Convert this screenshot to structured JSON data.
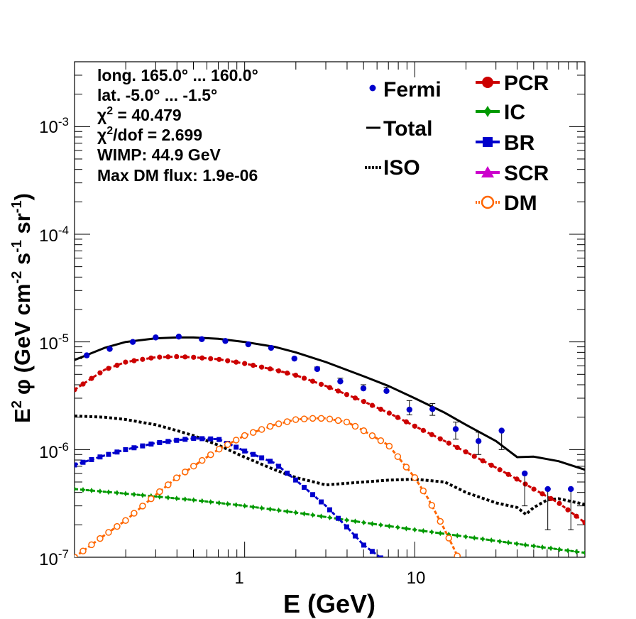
{
  "chart_data": {
    "type": "line",
    "title": "",
    "xlabel": "E (GeV)",
    "ylabel_parts": {
      "base": "E",
      "sq": "2",
      "phi": "φ (GeV cm",
      "cm_exp": "-2",
      "s": " s",
      "s_exp": "-1",
      "sr": " sr",
      "sr_exp": "-1",
      "close": ")"
    },
    "xscale": "log",
    "yscale": "log",
    "xlim": [
      0.1,
      100
    ],
    "ylim": [
      1e-07,
      0.004
    ],
    "x_ticks": [
      {
        "value": 1,
        "label": "1"
      },
      {
        "value": 10,
        "label": "10"
      }
    ],
    "y_ticks": [
      {
        "value": 1e-07,
        "base": "10",
        "exp": "-7"
      },
      {
        "value": 1e-06,
        "base": "10",
        "exp": "-6"
      },
      {
        "value": 1e-05,
        "base": "10",
        "exp": "-5"
      },
      {
        "value": 0.0001,
        "base": "10",
        "exp": "-4"
      },
      {
        "value": 0.001,
        "base": "10",
        "exp": "-3"
      }
    ],
    "info": {
      "longitude": "long. 165.0° ... 160.0°",
      "latitude": "lat. -5.0° ... -1.5°",
      "chi2_sym": "χ",
      "chi2_exp": "2",
      "chi2_value": " = 40.479",
      "chi2dof_value": "/dof = 2.699",
      "wimp": "WIMP: 44.9 GeV",
      "max_dm_flux": "Max DM flux: 1.9e-06"
    },
    "legend": [
      {
        "key": "fermi",
        "label": "Fermi",
        "color": "#0000cc"
      },
      {
        "key": "total",
        "label": "Total",
        "color": "#000000"
      },
      {
        "key": "iso",
        "label": "ISO",
        "color": "#000000"
      },
      {
        "key": "pcr",
        "label": "PCR",
        "color": "#cc0000"
      },
      {
        "key": "ic",
        "label": "IC",
        "color": "#009900"
      },
      {
        "key": "br",
        "label": "BR",
        "color": "#0000cc"
      },
      {
        "key": "scr",
        "label": "SCR",
        "color": "#cc00cc"
      },
      {
        "key": "dm",
        "label": "DM",
        "color": "#ff6600"
      }
    ],
    "fermi": {
      "x": [
        0.118,
        0.161,
        0.22,
        0.3,
        0.41,
        0.56,
        0.77,
        1.05,
        1.43,
        1.96,
        2.67,
        3.65,
        4.99,
        6.82,
        9.3,
        12.7,
        17.4,
        23.7,
        32.4,
        44.3,
        60.5,
        82.7
      ],
      "y": [
        7.5e-06,
        8.6e-06,
        1e-05,
        1.1e-05,
        1.12e-05,
        1.06e-05,
        1.02e-05,
        9.5e-06,
        8.8e-06,
        7e-06,
        5.6e-06,
        4.3e-06,
        3.7e-06,
        3.5e-06,
        2.35e-06,
        2.38e-06,
        1.55e-06,
        1.2e-06,
        1.5e-06,
        6e-07,
        4.3e-07,
        4.3e-07
      ],
      "err_lo": [
        0,
        0,
        0,
        0,
        0,
        0,
        0,
        0,
        0,
        0,
        0,
        0,
        0,
        0,
        2.5e-07,
        3e-07,
        3e-07,
        3e-07,
        5e-07,
        3e-07,
        2.5e-07,
        2.5e-07
      ],
      "err_hi": [
        0,
        0,
        0,
        0,
        0,
        0,
        0,
        0,
        0,
        0,
        2.5e-07,
        3e-07,
        3e-07,
        3e-07,
        5e-07,
        3e-07,
        2.5e-07,
        2.5e-07
      ]
    },
    "series": [
      {
        "name": "Total",
        "key": "total",
        "color": "#000000",
        "style": "solid",
        "x": [
          0.1,
          0.15,
          0.2,
          0.3,
          0.4,
          0.5,
          0.7,
          1.0,
          1.5,
          2.0,
          3.0,
          5.0,
          7.0,
          10,
          15,
          20,
          30,
          40,
          50,
          70,
          100
        ],
        "y": [
          6.8e-06,
          8.8e-06,
          1e-05,
          1.08e-05,
          1.1e-05,
          1.1e-05,
          1.07e-05,
          1e-05,
          9e-06,
          8e-06,
          6.5e-06,
          4.8e-06,
          3.9e-06,
          3e-06,
          2.2e-06,
          1.7e-06,
          1.2e-06,
          8.5e-07,
          8.6e-07,
          7.8e-07,
          6.5e-07
        ]
      },
      {
        "name": "ISO",
        "key": "iso",
        "color": "#000000",
        "style": "dotted",
        "x": [
          0.1,
          0.15,
          0.2,
          0.3,
          0.4,
          0.5,
          0.7,
          1.0,
          1.5,
          2.0,
          3.0,
          5.0,
          7.0,
          10,
          15,
          20,
          30,
          40,
          45,
          50,
          60,
          70,
          100
        ],
        "y": [
          2.05e-06,
          2e-06,
          1.9e-06,
          1.7e-06,
          1.5e-06,
          1.35e-06,
          1.1e-06,
          8.5e-07,
          6.5e-07,
          5.5e-07,
          4.7e-07,
          5e-07,
          5.2e-07,
          5.3e-07,
          5e-07,
          4e-07,
          3.2e-07,
          2.9e-07,
          2.5e-07,
          2.9e-07,
          3.4e-07,
          3.5e-07,
          3.1e-07
        ]
      },
      {
        "name": "PCR",
        "key": "pcr",
        "color": "#cc0000",
        "style": "dashed-markers",
        "x": [
          0.1,
          0.15,
          0.2,
          0.3,
          0.4,
          0.5,
          0.7,
          1.0,
          1.5,
          2.0,
          3.0,
          5.0,
          7.0,
          10,
          15,
          20,
          30,
          40,
          50,
          70,
          100
        ],
        "y": [
          3.6e-06,
          5.5e-06,
          6.5e-06,
          7.2e-06,
          7.3e-06,
          7.2e-06,
          6.9e-06,
          6.3e-06,
          5.5e-06,
          4.9e-06,
          3.9e-06,
          2.8e-06,
          2.2e-06,
          1.65e-06,
          1.2e-06,
          9.5e-07,
          6.8e-07,
          5.3e-07,
          4.3e-07,
          3.2e-07,
          2.1e-07
        ]
      },
      {
        "name": "IC",
        "key": "ic",
        "color": "#009900",
        "style": "dashed-markers",
        "x": [
          0.1,
          0.2,
          0.5,
          1.0,
          2.0,
          5.0,
          10,
          20,
          50,
          100
        ],
        "y": [
          4.3e-07,
          3.9e-07,
          3.4e-07,
          3e-07,
          2.6e-07,
          2.1e-07,
          1.8e-07,
          1.55e-07,
          1.27e-07,
          1.1e-07
        ]
      },
      {
        "name": "BR",
        "key": "br",
        "color": "#0000cc",
        "style": "dashed-markers",
        "x": [
          0.1,
          0.15,
          0.2,
          0.3,
          0.4,
          0.5,
          0.7,
          1.0,
          1.5,
          2.0,
          3.0,
          4.0,
          5.0,
          6.0,
          6.5
        ],
        "y": [
          7.2e-07,
          8.8e-07,
          1e-06,
          1.15e-06,
          1.22e-06,
          1.27e-06,
          1.25e-06,
          9.7e-07,
          7.5e-07,
          5.2e-07,
          3e-07,
          1.9e-07,
          1.3e-07,
          1.05e-07,
          9.5e-08
        ]
      },
      {
        "name": "DM",
        "key": "dm",
        "color": "#ff6600",
        "style": "dashed-markers",
        "x": [
          0.1,
          0.15,
          0.2,
          0.3,
          0.4,
          0.5,
          0.7,
          1.0,
          1.5,
          2.0,
          2.5,
          3.0,
          4.0,
          5.0,
          7.0,
          10,
          12,
          15,
          17,
          18.5
        ],
        "y": [
          1e-07,
          1.6e-07,
          2.2e-07,
          3.8e-07,
          5.5e-07,
          7e-07,
          1e-06,
          1.35e-06,
          1.7e-06,
          1.9e-06,
          1.95e-06,
          1.95e-06,
          1.8e-06,
          1.5e-06,
          1.1e-06,
          5.5e-07,
          3.5e-07,
          1.8e-07,
          1.2e-07,
          9e-08
        ]
      }
    ]
  }
}
